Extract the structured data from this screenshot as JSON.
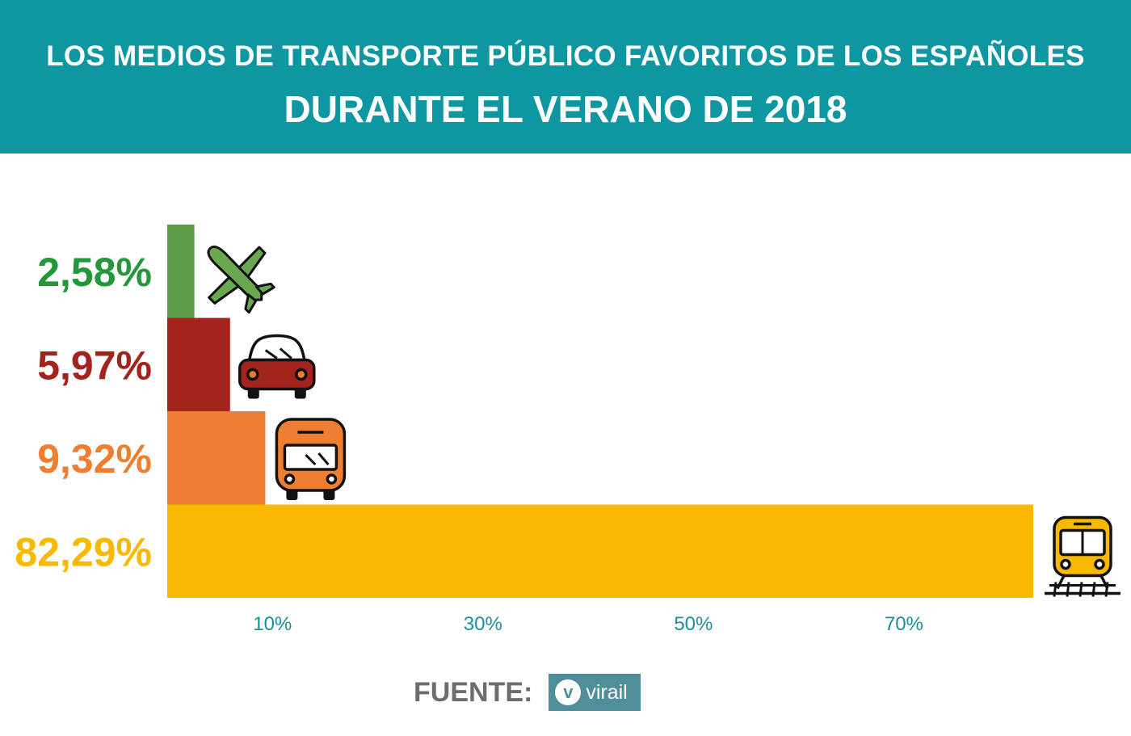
{
  "header": {
    "title_line1": "LOS MEDIOS DE TRANSPORTE PÚBLICO FAVORITOS DE LOS ESPAÑOLES",
    "title_line2": "DURANTE EL VERANO DE 2018"
  },
  "chart_data": {
    "type": "bar",
    "orientation": "horizontal",
    "title": "LOS MEDIOS DE TRANSPORTE PÚBLICO FAVORITOS DE LOS ESPAÑOLES DURANTE EL VERANO DE 2018",
    "categories": [
      "airplane-icon",
      "car-icon",
      "bus-icon",
      "train-icon"
    ],
    "values": [
      2.58,
      5.97,
      9.32,
      82.29
    ],
    "value_labels": [
      "2,58%",
      "5,97%",
      "9,32%",
      "82,29%"
    ],
    "colors": [
      "#5e9e47",
      "#a3231d",
      "#ee7f31",
      "#f9b900"
    ],
    "label_colors": [
      "#23983a",
      "#a3231d",
      "#ee7f31",
      "#f9b900"
    ],
    "x_ticks": [
      10,
      30,
      50,
      70
    ],
    "x_tick_labels": [
      "10%",
      "30%",
      "50%",
      "70%"
    ],
    "xlim": [
      0,
      82.29
    ],
    "grid": false,
    "legend": "none"
  },
  "source": {
    "label": "FUENTE:",
    "logo_letter": "v",
    "logo_text": "virail"
  },
  "colors": {
    "header_bg": "#0e97a1",
    "tick_label": "#1a8f99",
    "logo_bg": "#4f8f9a"
  }
}
